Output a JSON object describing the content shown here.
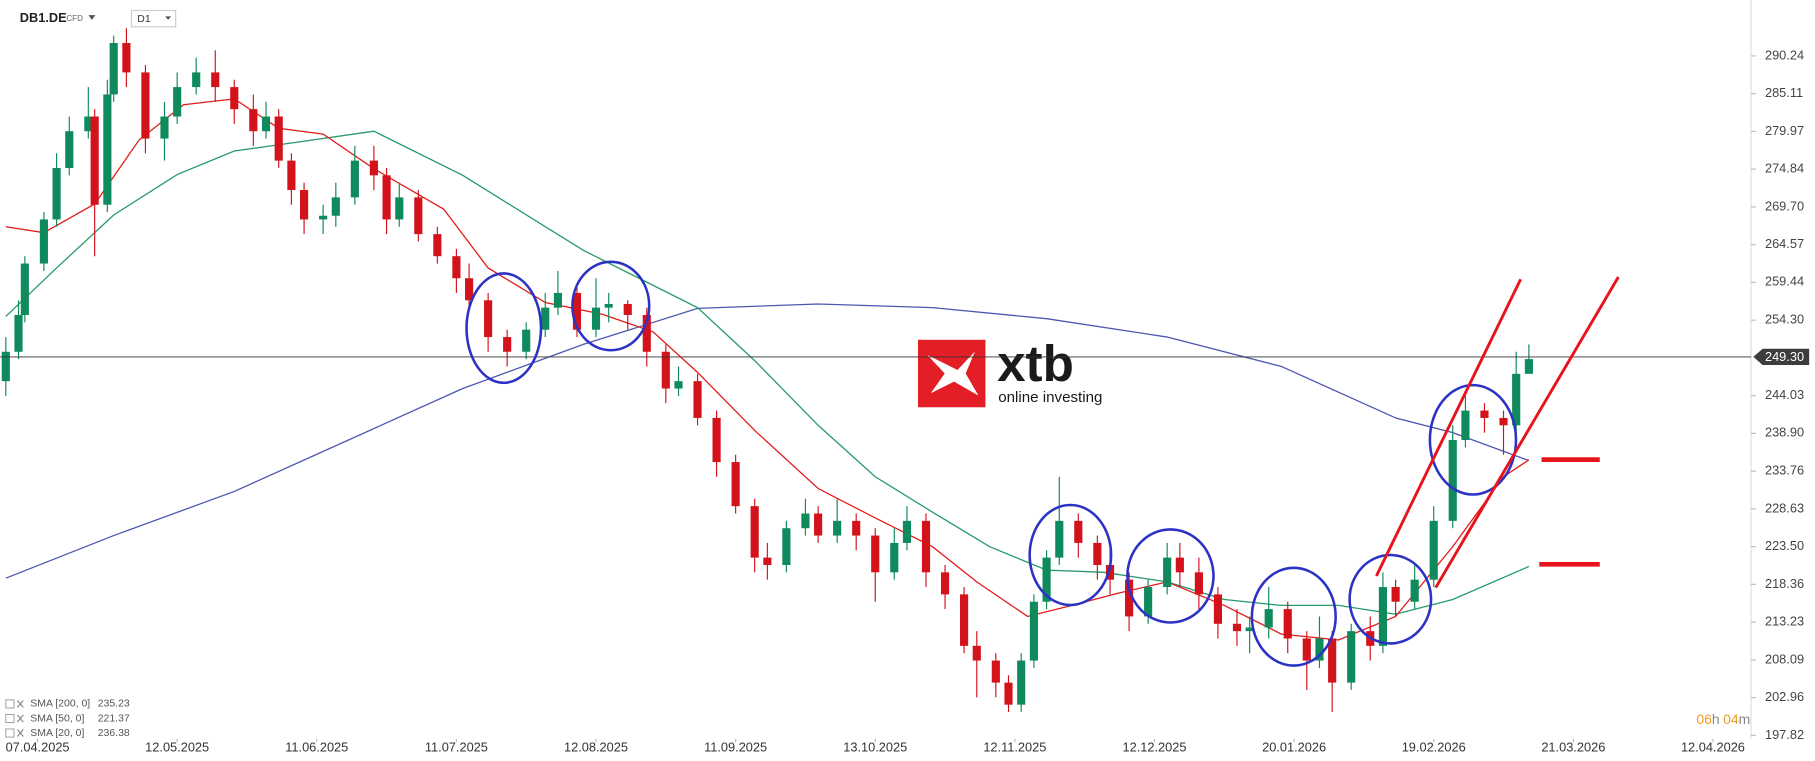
{
  "header": {
    "symbol": "DB1.DE",
    "instrument": "CFD",
    "timeframe": "D1"
  },
  "chart_data": {
    "type": "candlestick",
    "candles": {
      "x": [
        0,
        2,
        3,
        6,
        8,
        10,
        13,
        14,
        16,
        17,
        19,
        22,
        25,
        27,
        30,
        33,
        36,
        39,
        41,
        43,
        45,
        47,
        50,
        52,
        55,
        58,
        60,
        62,
        65,
        68,
        71,
        73,
        76,
        79,
        82,
        85,
        87,
        90,
        93,
        95,
        98,
        101,
        104,
        106,
        109,
        112,
        115,
        118,
        120,
        123,
        126,
        128,
        131,
        134,
        137,
        140,
        142,
        145,
        148,
        151,
        153,
        156,
        158,
        160,
        162,
        164,
        166,
        169,
        172,
        174,
        177,
        180,
        183,
        185,
        188,
        191,
        194,
        196,
        199,
        202,
        205,
        207,
        209,
        212,
        215,
        217,
        219,
        222,
        225,
        228,
        230,
        233,
        236,
        238,
        240
      ],
      "open": [
        246,
        250,
        255,
        262,
        268,
        275,
        280,
        282,
        270,
        285,
        292,
        288,
        279,
        282,
        286,
        288,
        286,
        283,
        280,
        282,
        276,
        272,
        268,
        268.5,
        271,
        276,
        274,
        268,
        271,
        266,
        263,
        260,
        257,
        252,
        250,
        253,
        256,
        258,
        253,
        256,
        256.5,
        255,
        250,
        245,
        246,
        241,
        235,
        229,
        222,
        221,
        226,
        228,
        225,
        227,
        225,
        220,
        224,
        227,
        220,
        217,
        210,
        208,
        205,
        202,
        208,
        216,
        222,
        227,
        224,
        221,
        219,
        214,
        218,
        222,
        220,
        217,
        213,
        212,
        212.5,
        215,
        211,
        208,
        211,
        205,
        212,
        210,
        218,
        216,
        219,
        227,
        238,
        242,
        241,
        240,
        247
      ],
      "high": [
        252,
        257,
        263,
        269,
        277,
        282,
        286,
        283,
        287,
        293,
        294,
        289,
        284,
        288,
        290,
        291,
        287,
        285,
        284,
        283,
        277,
        273,
        270,
        273,
        278,
        278,
        275,
        273,
        272,
        267,
        264,
        262,
        258,
        253,
        254,
        258,
        261,
        259,
        260,
        258,
        257,
        256,
        251,
        248,
        247,
        242,
        236,
        230,
        224,
        227,
        230,
        229,
        230,
        228,
        226,
        226,
        229,
        228,
        221,
        218,
        212,
        209,
        206,
        209,
        217,
        223,
        233,
        228,
        225,
        223,
        220,
        219,
        224,
        224,
        222,
        218,
        215,
        214,
        218,
        216,
        212,
        214,
        212,
        213,
        214,
        220,
        219,
        221,
        229,
        240,
        244,
        243,
        242,
        250,
        251
      ],
      "low": [
        244,
        249,
        254,
        261,
        267,
        274,
        279,
        263,
        269,
        284,
        286,
        277,
        276,
        281,
        285,
        284,
        281,
        278,
        279,
        275,
        270,
        266,
        266,
        267,
        270,
        272,
        266,
        267,
        265,
        262,
        258,
        256,
        250,
        248,
        249,
        252,
        255,
        252,
        252,
        254,
        253,
        248,
        243,
        244,
        240,
        233,
        228,
        220,
        219,
        220,
        225,
        224,
        224,
        223,
        216,
        219,
        223,
        218,
        215,
        209,
        203,
        203,
        201,
        201,
        207,
        215,
        221,
        222,
        219,
        217,
        212,
        213,
        217,
        218,
        215,
        211,
        210,
        209,
        211,
        209,
        204,
        207,
        201,
        204,
        208,
        209,
        214,
        215,
        218,
        226,
        237,
        239,
        236,
        239,
        248
      ],
      "close": [
        250,
        255,
        262,
        268,
        275,
        280,
        282,
        270,
        285,
        292,
        288,
        279,
        282,
        286,
        288,
        286,
        283,
        280,
        282,
        276,
        272,
        268,
        268.5,
        271,
        276,
        274,
        268,
        271,
        266,
        263,
        260,
        257,
        252,
        250,
        253,
        256,
        258,
        253,
        256,
        256.5,
        255,
        250,
        245,
        246,
        241,
        235,
        229,
        222,
        221,
        226,
        228,
        225,
        227,
        225,
        220,
        224,
        227,
        220,
        217,
        210,
        208,
        205,
        202,
        208,
        216,
        222,
        227,
        224,
        221,
        219,
        214,
        218,
        222,
        220,
        217,
        213,
        212,
        212.5,
        215,
        211,
        208,
        211,
        205,
        212,
        210,
        218,
        216,
        219,
        227,
        238,
        242,
        241,
        240,
        247,
        249
      ],
      "up_color": "#0e8a5c",
      "down_color": "#d3121c"
    },
    "series": [
      {
        "name": "SMA [200, 0]",
        "last": 235.23,
        "color": "#4b57b0",
        "x": [
          0,
          17,
          36,
          54,
          72,
          91,
          109,
          128,
          146,
          164,
          183,
          201,
          219,
          228,
          240
        ],
        "values": [
          219.2,
          225,
          231,
          238,
          245,
          251,
          255.9,
          256.5,
          256,
          254.5,
          252,
          248,
          241,
          239,
          235.2
        ]
      },
      {
        "name": "SMA [50, 0]",
        "last": 221.37,
        "color": "#24996a",
        "x": [
          0,
          8,
          17,
          27,
          36,
          45,
          58,
          72,
          91,
          109,
          118,
          128,
          137,
          146,
          155,
          164,
          173,
          183,
          192,
          201,
          210,
          219,
          228,
          240
        ],
        "values": [
          254.8,
          261.4,
          268.6,
          274.1,
          277.3,
          278.4,
          280,
          274,
          263.8,
          256,
          248.8,
          240,
          233,
          228.2,
          223.5,
          220.3,
          220,
          218.7,
          216.3,
          215.5,
          215.5,
          214.3,
          216.3,
          220.8
        ]
      },
      {
        "name": "SMA [20, 0]",
        "last": 236.38,
        "color": "#e01b1b",
        "x": [
          0,
          6,
          14,
          21,
          28,
          36,
          43,
          50,
          58,
          69,
          76,
          85,
          94,
          102,
          109,
          118,
          128,
          137,
          146,
          153,
          161,
          168,
          175,
          183,
          192,
          201,
          210,
          219,
          228,
          236,
          240
        ],
        "values": [
          267,
          266.2,
          270.1,
          278.8,
          283.6,
          284.4,
          280.4,
          279.6,
          274.9,
          269.4,
          261.4,
          256.7,
          255.1,
          252.7,
          247.2,
          239.3,
          231.4,
          227.4,
          223.5,
          218.7,
          214,
          215.5,
          217.1,
          218.7,
          215.5,
          211.6,
          210.8,
          214,
          223.5,
          233,
          235.3
        ]
      }
    ],
    "last_price": {
      "value": 249.3,
      "label": "249.30"
    },
    "xlim": [
      0,
      275
    ],
    "xticks": [
      {
        "value": 5,
        "label": "07.04.2025"
      },
      {
        "value": 27,
        "label": "12.05.2025"
      },
      {
        "value": 49,
        "label": "11.06.2025"
      },
      {
        "value": 71,
        "label": "11.07.2025"
      },
      {
        "value": 93,
        "label": "12.08.2025"
      },
      {
        "value": 115,
        "label": "11.09.2025"
      },
      {
        "value": 137,
        "label": "13.10.2025"
      },
      {
        "value": 159,
        "label": "12.11.2025"
      },
      {
        "value": 181,
        "label": "12.12.2025"
      },
      {
        "value": 203,
        "label": "20.01.2026"
      },
      {
        "value": 225,
        "label": "19.02.2026"
      },
      {
        "value": 247,
        "label": "21.03.2026"
      },
      {
        "value": 269,
        "label": "12.04.2026"
      }
    ],
    "ylim": [
      197.35,
      297.84
    ],
    "yticks": [
      290.24,
      285.11,
      279.97,
      274.84,
      {
        "value": 269.7,
        "label": "269.70"
      },
      264.57,
      259.44,
      {
        "value": 254.3,
        "label": "254.30"
      },
      244.03,
      {
        "value": 238.9,
        "label": "238.90"
      },
      233.76,
      228.63,
      {
        "value": 223.5,
        "label": "223.50"
      },
      218.36,
      213.23,
      208.09,
      202.96,
      197.82
    ]
  },
  "watermark": {
    "brand": "xtb",
    "tagline": "online investing"
  },
  "timer": {
    "hours": "06",
    "hours_unit": "h",
    "minutes": "04",
    "minutes_unit": "m"
  }
}
